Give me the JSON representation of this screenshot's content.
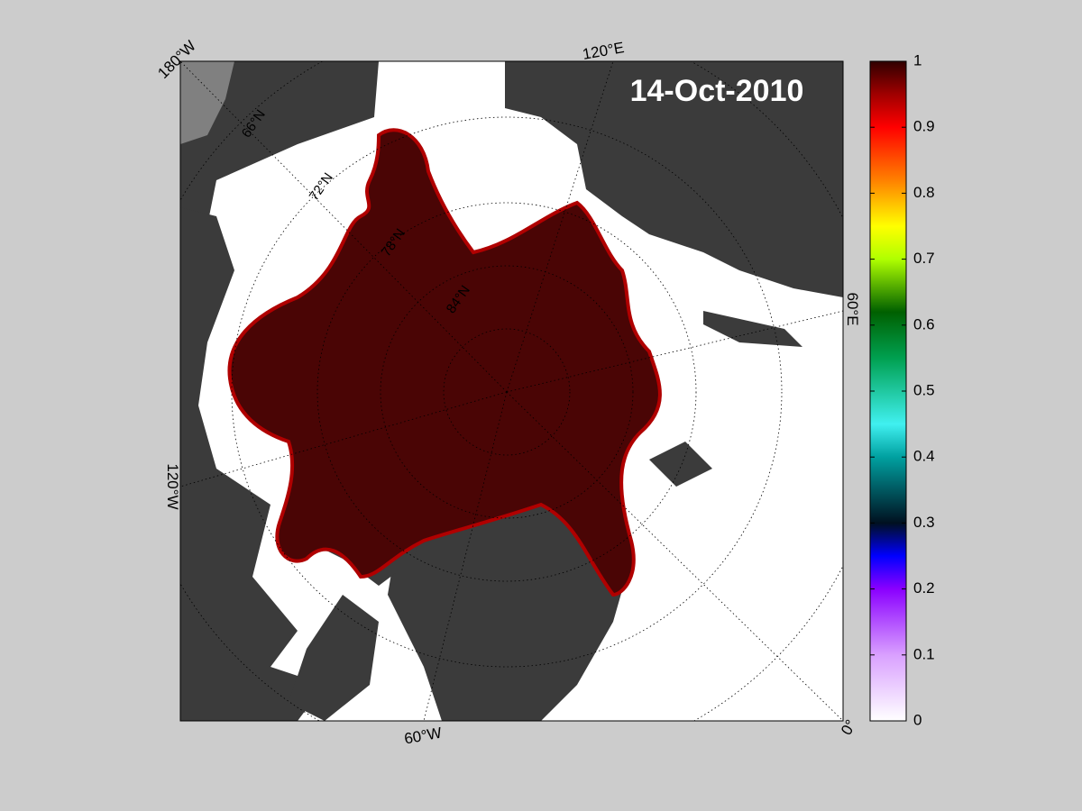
{
  "map": {
    "title": "14-Oct-2010",
    "longitude_labels": [
      "180°W",
      "120°E",
      "60°E",
      "0°",
      "60°W",
      "120°W"
    ],
    "latitude_labels": [
      "66°N",
      "72°N",
      "78°N",
      "84°N"
    ],
    "colorbar": {
      "lim": [
        0,
        1
      ],
      "ticks": [
        0,
        0.1,
        0.2,
        0.3,
        0.4,
        0.5,
        0.6,
        0.7,
        0.8,
        0.9,
        1
      ]
    }
  }
}
